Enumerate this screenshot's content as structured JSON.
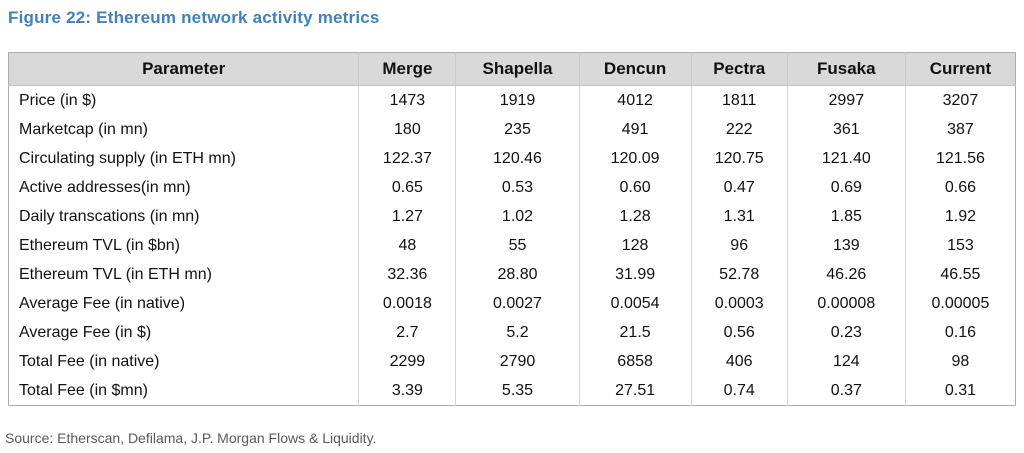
{
  "figure": {
    "title": "Figure 22: Ethereum network activity metrics",
    "source": "Source: Etherscan, Defilama, J.P. Morgan Flows & Liquidity."
  },
  "colors": {
    "title_blue": "#4181BC",
    "header_bg": "#D9D9D9",
    "table_border": "#ABABAB",
    "source_gray": "#595959"
  },
  "table": {
    "columns": [
      "Parameter",
      "Merge",
      "Shapella",
      "Dencun",
      "Pectra",
      "Fusaka",
      "Current"
    ],
    "rows": [
      {
        "parameter": "Price (in $)",
        "values": [
          "1473",
          "1919",
          "4012",
          "1811",
          "2997",
          "3207"
        ]
      },
      {
        "parameter": "Marketcap (in mn)",
        "values": [
          "180",
          "235",
          "491",
          "222",
          "361",
          "387"
        ]
      },
      {
        "parameter": "Circulating supply (in ETH mn)",
        "values": [
          "122.37",
          "120.46",
          "120.09",
          "120.75",
          "121.40",
          "121.56"
        ]
      },
      {
        "parameter": "Active addresses(in mn)",
        "values": [
          "0.65",
          "0.53",
          "0.60",
          "0.47",
          "0.69",
          "0.66"
        ]
      },
      {
        "parameter": "Daily transcations (in mn)",
        "values": [
          "1.27",
          "1.02",
          "1.28",
          "1.31",
          "1.85",
          "1.92"
        ]
      },
      {
        "parameter": "Ethereum TVL (in $bn)",
        "values": [
          "48",
          "55",
          "128",
          "96",
          "139",
          "153"
        ]
      },
      {
        "parameter": "Ethereum TVL (in ETH mn)",
        "values": [
          "32.36",
          "28.80",
          "31.99",
          "52.78",
          "46.26",
          "46.55"
        ]
      },
      {
        "parameter": "Average Fee (in native)",
        "values": [
          "0.0018",
          "0.0027",
          "0.0054",
          "0.0003",
          "0.00008",
          "0.00005"
        ]
      },
      {
        "parameter": "Average Fee (in $)",
        "values": [
          "2.7",
          "5.2",
          "21.5",
          "0.56",
          "0.23",
          "0.16"
        ]
      },
      {
        "parameter": "Total Fee (in native)",
        "values": [
          "2299",
          "2790",
          "6858",
          "406",
          "124",
          "98"
        ]
      },
      {
        "parameter": "Total Fee (in $mn)",
        "values": [
          "3.39",
          "5.35",
          "27.51",
          "0.74",
          "0.37",
          "0.31"
        ]
      }
    ]
  },
  "chart_data": {
    "type": "table",
    "title": "Figure 22: Ethereum network activity metrics",
    "columns": [
      "Parameter",
      "Merge",
      "Shapella",
      "Dencun",
      "Pectra",
      "Fusaka",
      "Current"
    ],
    "rows": [
      [
        "Price (in $)",
        "1473",
        "1919",
        "4012",
        "1811",
        "2997",
        "3207"
      ],
      [
        "Marketcap (in mn)",
        "180",
        "235",
        "491",
        "222",
        "361",
        "387"
      ],
      [
        "Circulating supply (in ETH mn)",
        "122.37",
        "120.46",
        "120.09",
        "120.75",
        "121.40",
        "121.56"
      ],
      [
        "Active addresses(in mn)",
        "0.65",
        "0.53",
        "0.60",
        "0.47",
        "0.69",
        "0.66"
      ],
      [
        "Daily transcations (in mn)",
        "1.27",
        "1.02",
        "1.28",
        "1.31",
        "1.85",
        "1.92"
      ],
      [
        "Ethereum TVL (in $bn)",
        "48",
        "55",
        "128",
        "96",
        "139",
        "153"
      ],
      [
        "Ethereum TVL (in ETH mn)",
        "32.36",
        "28.80",
        "31.99",
        "52.78",
        "46.26",
        "46.55"
      ],
      [
        "Average Fee (in native)",
        "0.0018",
        "0.0027",
        "0.0054",
        "0.0003",
        "0.00008",
        "0.00005"
      ],
      [
        "Average Fee (in $)",
        "2.7",
        "5.2",
        "21.5",
        "0.56",
        "0.23",
        "0.16"
      ],
      [
        "Total Fee (in native)",
        "2299",
        "2790",
        "6858",
        "406",
        "124",
        "98"
      ],
      [
        "Total Fee (in $mn)",
        "3.39",
        "5.35",
        "27.51",
        "0.74",
        "0.37",
        "0.31"
      ]
    ],
    "source": "Source: Etherscan, Defilama, J.P. Morgan Flows & Liquidity.",
    "layout_hints": {
      "header_background": "#D9D9D9",
      "grid": "vertical-separators-only",
      "value_alignment": "center",
      "parameter_alignment": "left"
    }
  }
}
